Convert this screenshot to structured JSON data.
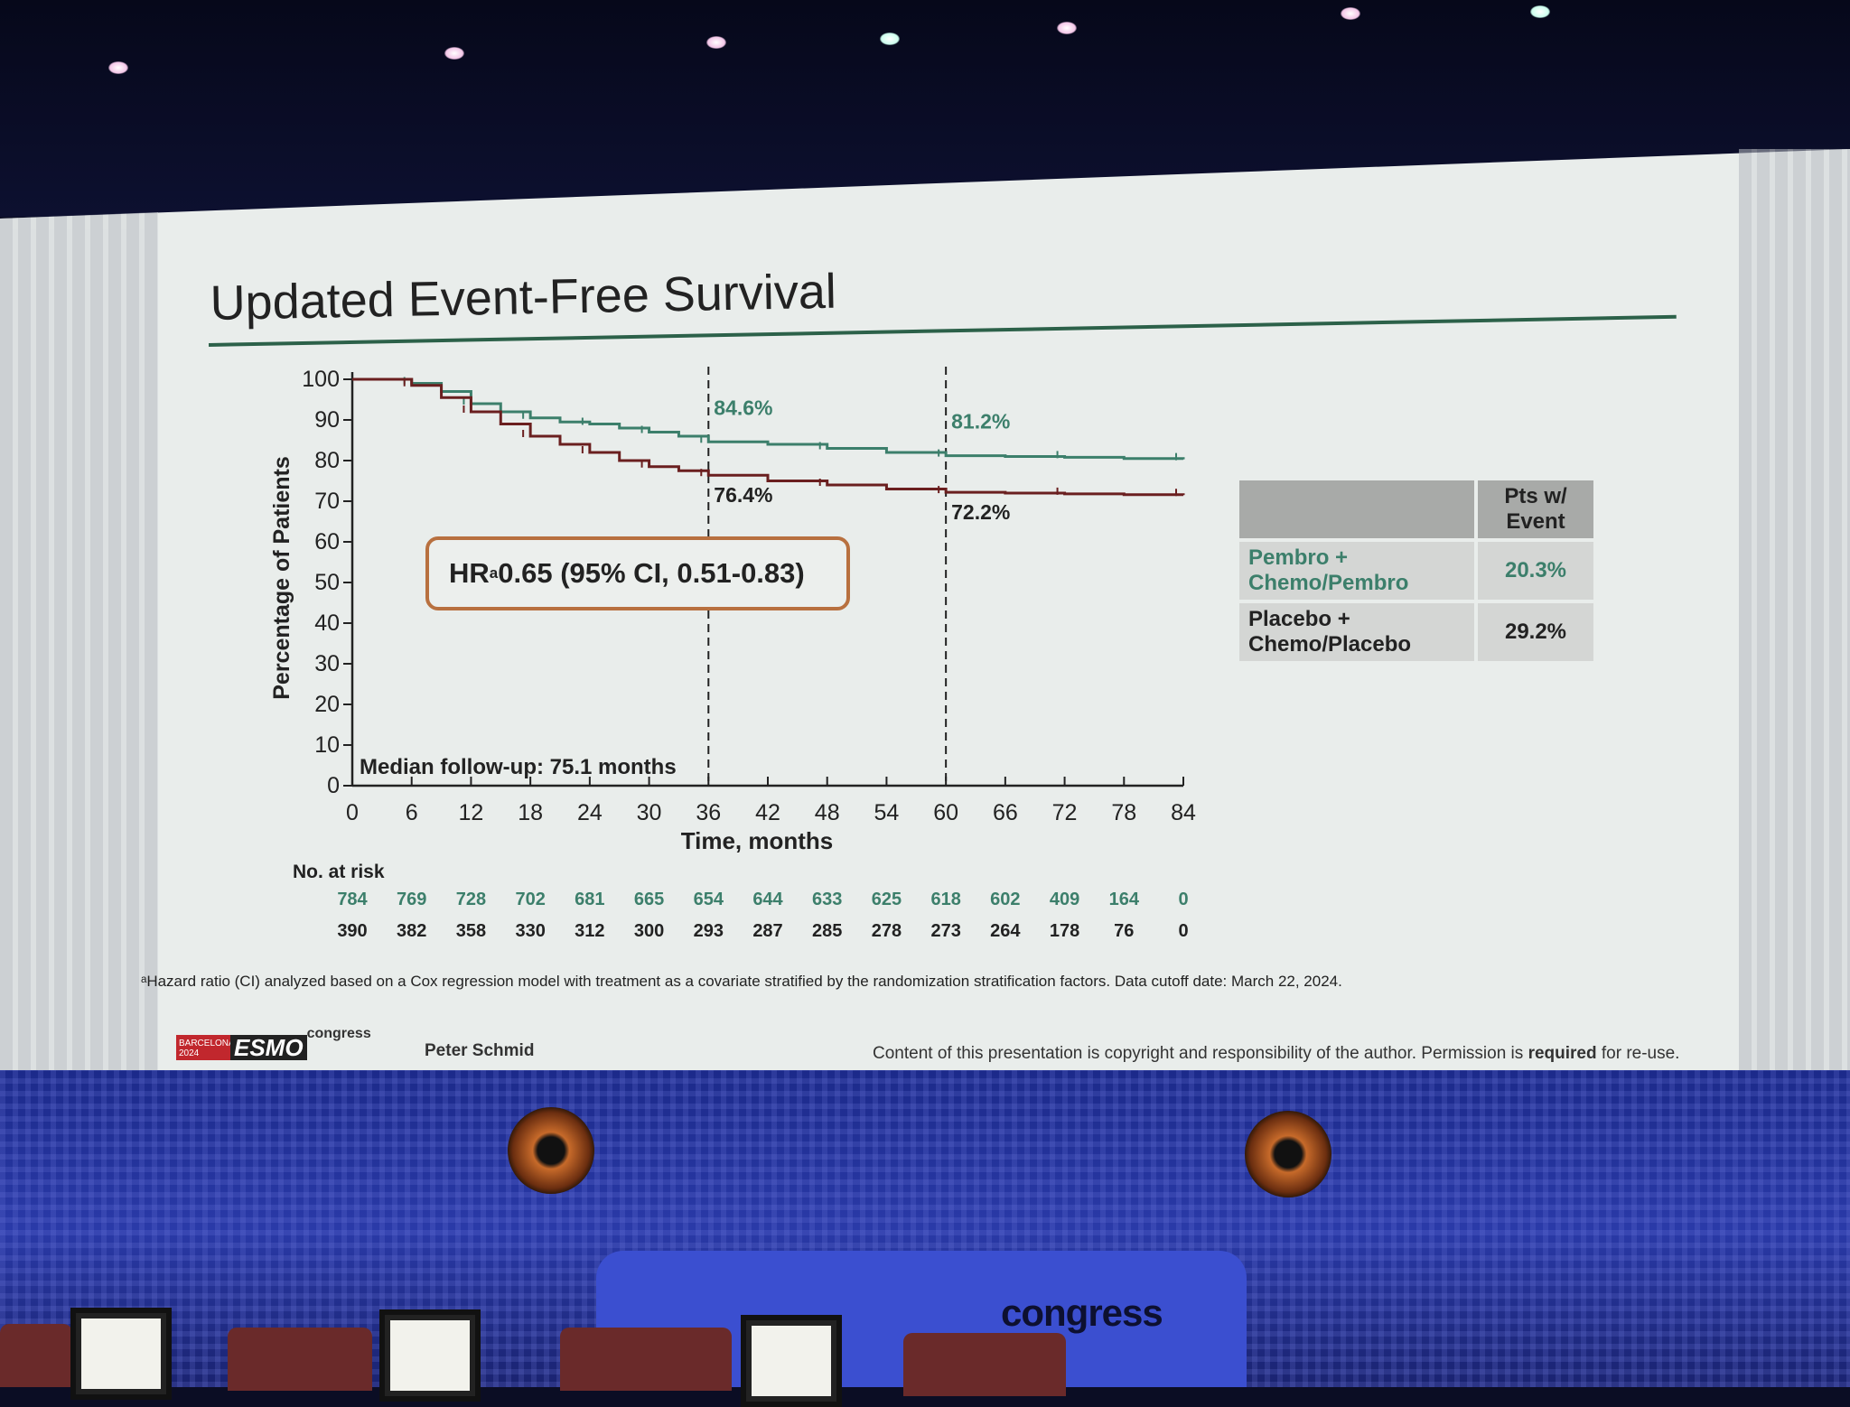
{
  "slide": {
    "title": "Updated Event-Free Survival",
    "footnote": "ᵃHazard ratio (CI) analyzed based on a Cox regression model with treatment as a covariate stratified by the randomization stratification factors. Data cutoff date: March 22, 2024.",
    "presenter": "Peter Schmid",
    "copyright_prefix": "Content of this presentation is copyright and responsibility of the author. Permission is ",
    "copyright_bold": "required",
    "copyright_suffix": " for re-use.",
    "logo": {
      "city": "BARCELONA",
      "year": "2024",
      "word": "ESMO",
      "suffix": "congress"
    },
    "hr_text": "HR",
    "hr_sup": "a",
    "hr_value": " 0.65 (95% CI, 0.51-0.83)",
    "median_followup": "Median follow-up: 75.1 months",
    "risk_header": "No. at risk",
    "table": {
      "header": "Pts w/ Event",
      "rows": [
        {
          "label": "Pembro + Chemo/Pembro",
          "value": "20.3%",
          "color": "#3c7f6b"
        },
        {
          "label": "Placebo + Chemo/Placebo",
          "value": "29.2%",
          "color": "#222222"
        }
      ]
    }
  },
  "stage": {
    "podium_word": "congress"
  },
  "chart_data": {
    "type": "line",
    "title": "Updated Event-Free Survival",
    "xlabel": "Time, months",
    "ylabel": "Percentage of Patients",
    "xlim": [
      0,
      84
    ],
    "ylim": [
      0,
      100
    ],
    "xticks": [
      0,
      6,
      12,
      18,
      24,
      30,
      36,
      42,
      48,
      54,
      60,
      66,
      72,
      78,
      84
    ],
    "yticks": [
      0,
      10,
      20,
      30,
      40,
      50,
      60,
      70,
      80,
      90,
      100
    ],
    "series": [
      {
        "color": "#3c7f6b",
        "x": [
          0,
          3,
          6,
          9,
          12,
          15,
          18,
          21,
          24,
          27,
          30,
          33,
          36,
          42,
          48,
          54,
          60,
          66,
          72,
          78,
          84
        ],
        "y": [
          100,
          100,
          99,
          97,
          94,
          92,
          90.5,
          89.5,
          89,
          88,
          87,
          86,
          84.6,
          84,
          83,
          82,
          81.2,
          81,
          80.8,
          80.5,
          80.3
        ],
        "at_risk": [
          "784",
          "769",
          "728",
          "702",
          "681",
          "665",
          "654",
          "644",
          "633",
          "625",
          "618",
          "602",
          "409",
          "164",
          "0"
        ]
      },
      {
        "color": "#6a1f1f",
        "x": [
          0,
          3,
          6,
          9,
          12,
          15,
          18,
          21,
          24,
          27,
          30,
          33,
          36,
          42,
          48,
          54,
          60,
          66,
          72,
          78,
          84
        ],
        "y": [
          100,
          100,
          98.5,
          95.5,
          92,
          89,
          86,
          84,
          82,
          80,
          78.5,
          77.5,
          76.4,
          75,
          74,
          73,
          72.2,
          72,
          71.8,
          71.6,
          71.5
        ],
        "at_risk": [
          "390",
          "382",
          "358",
          "330",
          "312",
          "300",
          "293",
          "287",
          "285",
          "278",
          "273",
          "264",
          "178",
          "76",
          "0"
        ]
      }
    ],
    "annotations": [
      {
        "x": 36,
        "text": "84.6%",
        "series": 0
      },
      {
        "x": 36,
        "text": "76.4%",
        "series": 1
      },
      {
        "x": 60,
        "text": "81.2%",
        "series": 0
      },
      {
        "x": 60,
        "text": "72.2%",
        "series": 1
      }
    ],
    "reference_lines_x": [
      36,
      60
    ]
  }
}
